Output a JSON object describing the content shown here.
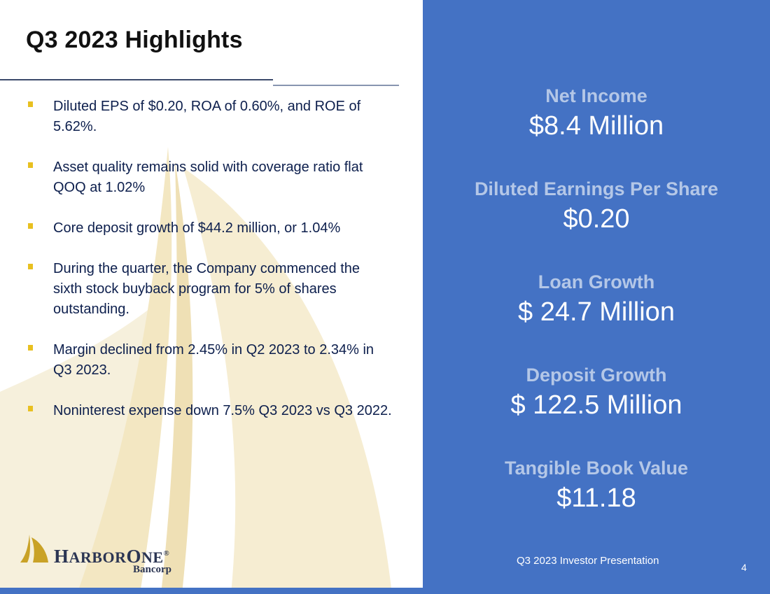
{
  "slide": {
    "title": "Q3 2023 Highlights",
    "bullets": [
      "Diluted EPS of $0.20, ROA of 0.60%, and ROE of 5.62%.",
      "Asset quality remains solid with coverage ratio flat QOQ at 1.02%",
      "Core deposit growth of $44.2 million, or 1.04%",
      "During the quarter, the Company commenced the sixth stock buyback program  for 5% of shares outstanding.",
      "Margin declined from 2.45% in Q2 2023 to 2.34% in Q3 2023.",
      "Noninterest expense down 7.5% Q3 2023 vs Q3 2022."
    ],
    "metrics": [
      {
        "label": "Net Income",
        "value": "$8.4 Million"
      },
      {
        "label": "Diluted Earnings Per Share",
        "value": "$0.20"
      },
      {
        "label": "Loan Growth",
        "value": "$ 24.7 Million"
      },
      {
        "label": "Deposit Growth",
        "value": "$ 122.5 Million"
      },
      {
        "label": "Tangible Book Value",
        "value": "$11.18"
      }
    ],
    "footer": "Q3 2023 Investor Presentation",
    "page_number": "4"
  },
  "logo": {
    "brand": "HARBORONE",
    "subtitle": "Bancorp"
  },
  "colors": {
    "panel_blue": "#4472c4",
    "metric_label": "#b4c7e7",
    "bullet_marker": "#e8c020",
    "body_text": "#0d1f4d",
    "logo_gold": "#c9a227"
  }
}
